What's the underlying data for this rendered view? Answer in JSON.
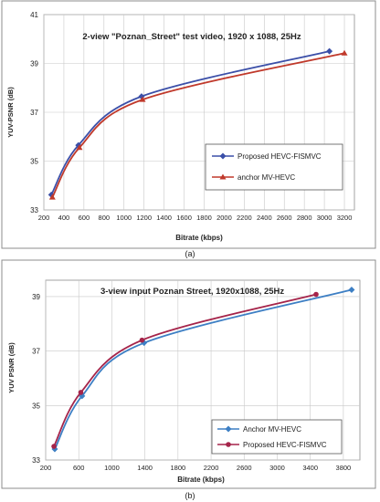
{
  "chart_data": [
    {
      "type": "line",
      "panel_label": "(a)",
      "title": "2-view \"Poznan_Street\" test video, 1920  x 1088,  25Hz",
      "xlabel": "Bitrate (kbps)",
      "ylabel": "YUV-PSNR (dB)",
      "xlim": [
        200,
        3300
      ],
      "ylim": [
        33,
        41
      ],
      "xticks": [
        200,
        400,
        600,
        800,
        1000,
        1200,
        1400,
        1600,
        1800,
        2000,
        2200,
        2400,
        2600,
        2800,
        3000,
        3200
      ],
      "yticks": [
        33,
        35,
        37,
        39,
        41
      ],
      "grid": true,
      "legend_position": "right",
      "series": [
        {
          "name": "Proposed HEVC-FISMVC",
          "color": "#3b4fa8",
          "marker": "diamond",
          "points": [
            [
              275,
              33.62
            ],
            [
              545,
              35.65
            ],
            [
              1175,
              37.65
            ],
            [
              3050,
              39.5
            ]
          ]
        },
        {
          "name": "anchor MV-HEVC",
          "color": "#c0392b",
          "marker": "triangle",
          "points": [
            [
              285,
              33.52
            ],
            [
              555,
              35.55
            ],
            [
              1185,
              37.52
            ],
            [
              3200,
              39.42
            ]
          ]
        }
      ]
    },
    {
      "type": "line",
      "panel_label": "(b)",
      "title": "3-view input Poznan Street, 1920x1088,  25Hz",
      "xlabel": "Bitrate (kbps)",
      "ylabel": "YUV PSNR (dB)",
      "xlim": [
        200,
        4000
      ],
      "ylim": [
        33,
        39.6
      ],
      "xticks": [
        200,
        600,
        1000,
        1400,
        1800,
        2200,
        2600,
        3000,
        3400,
        3800
      ],
      "yticks": [
        33,
        35,
        37,
        39
      ],
      "grid": true,
      "legend_position": "right",
      "series": [
        {
          "name": "Anchor MV-HEVC",
          "color": "#3d7fc4",
          "marker": "diamond",
          "points": [
            [
              310,
              33.4
            ],
            [
              640,
              35.35
            ],
            [
              1390,
              37.3
            ],
            [
              3900,
              39.25
            ]
          ]
        },
        {
          "name": "Proposed HEVC-FISMVC",
          "color": "#a5244a",
          "marker": "circle",
          "points": [
            [
              300,
              33.5
            ],
            [
              625,
              35.48
            ],
            [
              1365,
              37.4
            ],
            [
              3470,
              39.08
            ]
          ]
        }
      ]
    }
  ]
}
